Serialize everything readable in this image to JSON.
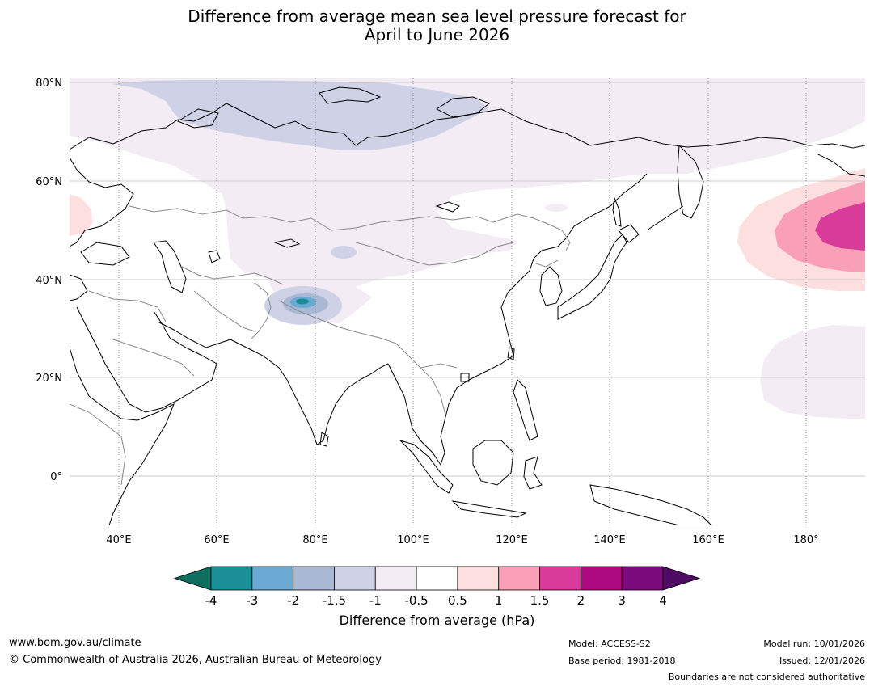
{
  "title": {
    "line1": "Difference from average mean sea level pressure forecast for",
    "line2": "April to June 2026"
  },
  "map": {
    "lat_labels": [
      "80°N",
      "60°N",
      "40°N",
      "20°N",
      "0°"
    ],
    "lon_labels": [
      "40°E",
      "60°E",
      "80°E",
      "100°E",
      "120°E",
      "140°E",
      "160°E",
      "180°"
    ],
    "lon_range": [
      30,
      192
    ],
    "lat_range": [
      -10,
      81
    ],
    "colors": {
      "land_outline": "#000000",
      "border": "#8a8a8a",
      "grid": "#bdbdbd"
    }
  },
  "colorbar": {
    "title": "Difference from average (hPa)",
    "ticks": [
      "-4",
      "-3",
      "-2",
      "-1.5",
      "-1",
      "-0.5",
      "0.5",
      "1",
      "1.5",
      "2",
      "3",
      "4"
    ],
    "colors": [
      "#1a8f98",
      "#6aa9d1",
      "#a9b8d4",
      "#cfd1e6",
      "#f3ecf5",
      "#ffffff",
      "#fddfe0",
      "#f99fb8",
      "#d93b9a",
      "#ad0a80",
      "#7a0b7c"
    ],
    "under_color": "#0e6e60",
    "over_color": "#4f0a63"
  },
  "footer": {
    "website": "www.bom.gov.au/climate",
    "copyright": "© Commonwealth of Australia 2026, Australian Bureau of Meteorology",
    "model": "Model: ACCESS-S2",
    "base_period": "Base period: 1981-2018",
    "model_run": "Model run: 10/01/2026",
    "issued": "Issued: 12/01/2026",
    "disclaimer": "Boundaries are not considered authoritative"
  }
}
